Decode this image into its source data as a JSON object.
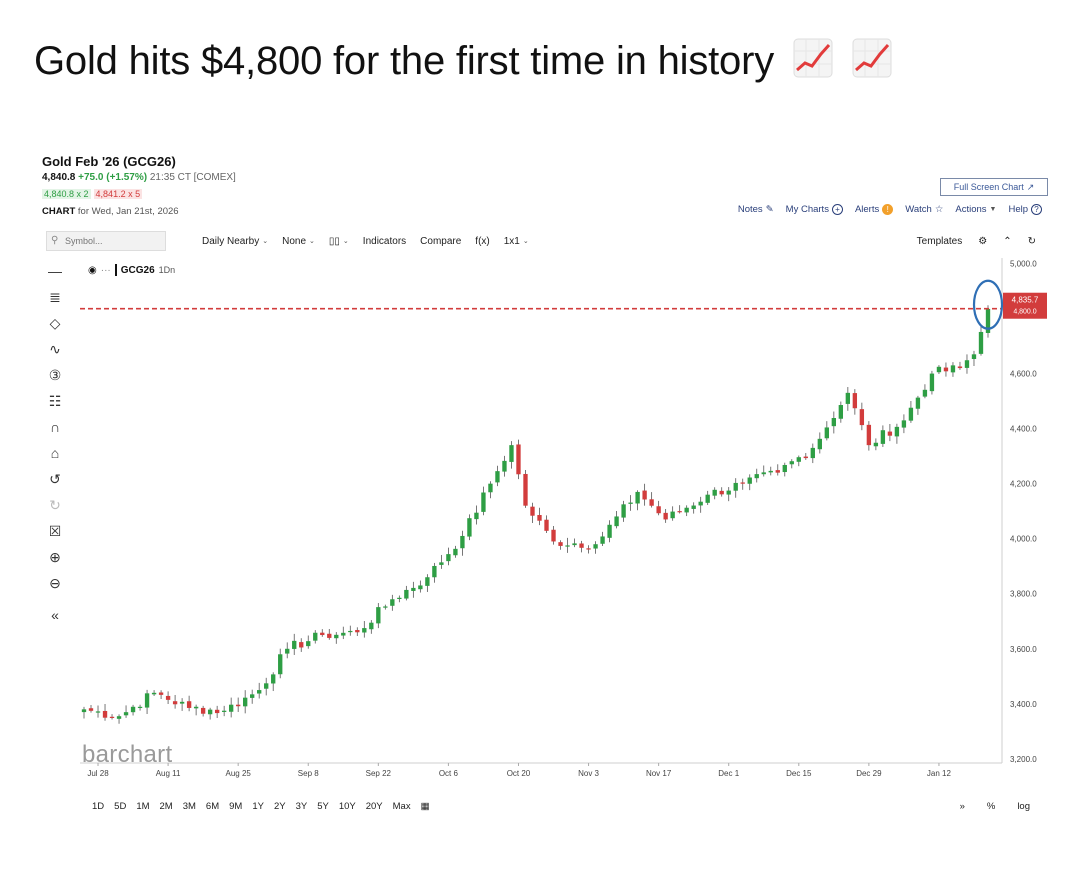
{
  "headline": {
    "text": "Gold hits $4,800 for the first time in history",
    "emoji_icons": [
      "chart-increasing-icon",
      "chart-increasing-icon"
    ]
  },
  "header": {
    "title": "Gold Feb '26 (GCG26)",
    "last": "4,840.8",
    "change": "+75.0 (+1.57%)",
    "timestamp": "21:35 CT [COMEX]",
    "bid": "4,840.8 x 2",
    "ask": "4,841.2 x 5",
    "chart_label": "CHART",
    "chart_date": "for Wed, Jan 21st, 2026"
  },
  "actions": {
    "full_screen": "Full Screen Chart",
    "notes": "Notes",
    "my_charts": "My Charts",
    "alerts": "Alerts",
    "watch": "Watch",
    "actions": "Actions",
    "help": "Help"
  },
  "toolbar": {
    "symbol_placeholder": "Symbol...",
    "period": "Daily Nearby",
    "compare_mode": "None",
    "chart_style": "▯▯",
    "indicators": "Indicators",
    "compare": "Compare",
    "fx": "f(x)",
    "layout": "1x1",
    "templates": "Templates"
  },
  "left_tools": [
    "crosshair-icon",
    "text-tool-icon",
    "shape-tool-icon",
    "curve-tool-icon",
    "numbered-marker-icon",
    "pattern-tool-icon",
    "magnet-icon",
    "lock-icon",
    "undo-icon",
    "redo-icon",
    "trash-icon",
    "zoom-in-icon",
    "zoom-out-icon",
    "collapse-icon"
  ],
  "legend": {
    "symbol": "GCG26",
    "interval": "1Dn"
  },
  "watermark": "barchart",
  "range_buttons": [
    "1D",
    "5D",
    "1M",
    "2M",
    "3M",
    "6M",
    "9M",
    "1Y",
    "2Y",
    "3Y",
    "5Y",
    "10Y",
    "20Y",
    "Max"
  ],
  "bottom_right": {
    "collapse": "»",
    "percent": "%",
    "log": "log"
  },
  "colors": {
    "up": "#2e9e44",
    "down": "#d23c3c",
    "price_line": "#d23c3c",
    "highlight_circle": "#2f6fb5"
  },
  "chart_data": {
    "type": "candlestick",
    "y_ticks": [
      "5,000.0",
      "4,600.0",
      "4,400.0",
      "4,200.0",
      "4,000.0",
      "3,800.0",
      "3,600.0",
      "3,400.0",
      "3,200.0"
    ],
    "y_tick_values": [
      5000,
      4600,
      4400,
      4200,
      4000,
      3800,
      3600,
      3400,
      3200
    ],
    "ylim": [
      3185,
      5020
    ],
    "x_labels": [
      "Jul 28",
      "Aug 11",
      "Aug 25",
      "Sep 8",
      "Sep 22",
      "Oct 6",
      "Oct 20",
      "Nov 3",
      "Nov 17",
      "Dec 1",
      "Dec 15",
      "Dec 29",
      "Jan 12"
    ],
    "current_price": 4835.7,
    "current_price_label": "4,835.7",
    "price_tag_secondary": "4,800.0",
    "anchors": [
      {
        "date": "Jul 24",
        "close": 3380
      },
      {
        "date": "Jul 31",
        "close": 3355
      },
      {
        "date": "Aug 7",
        "close": 3440
      },
      {
        "date": "Aug 14",
        "close": 3385
      },
      {
        "date": "Aug 21",
        "close": 3375
      },
      {
        "date": "Aug 28",
        "close": 3450
      },
      {
        "date": "Sep 3",
        "close": 3600
      },
      {
        "date": "Sep 10",
        "close": 3650
      },
      {
        "date": "Sep 17",
        "close": 3660
      },
      {
        "date": "Sep 24",
        "close": 3780
      },
      {
        "date": "Oct 1",
        "close": 3860
      },
      {
        "date": "Oct 8",
        "close": 4010
      },
      {
        "date": "Oct 14",
        "close": 4200
      },
      {
        "date": "Oct 17",
        "close": 4340
      },
      {
        "date": "Oct 21",
        "close": 4120
      },
      {
        "date": "Oct 27",
        "close": 3990
      },
      {
        "date": "Nov 4",
        "close": 3980
      },
      {
        "date": "Nov 12",
        "close": 4170
      },
      {
        "date": "Nov 18",
        "close": 4070
      },
      {
        "date": "Nov 26",
        "close": 4160
      },
      {
        "date": "Dec 3",
        "close": 4200
      },
      {
        "date": "Dec 10",
        "close": 4240
      },
      {
        "date": "Dec 17",
        "close": 4330
      },
      {
        "date": "Dec 24",
        "close": 4530
      },
      {
        "date": "Dec 29",
        "close": 4340
      },
      {
        "date": "Jan 5",
        "close": 4430
      },
      {
        "date": "Jan 9",
        "close": 4600
      },
      {
        "date": "Jan 15",
        "close": 4620
      },
      {
        "date": "Jan 19",
        "close": 4670
      },
      {
        "date": "Jan 21",
        "close": 4835
      }
    ]
  }
}
